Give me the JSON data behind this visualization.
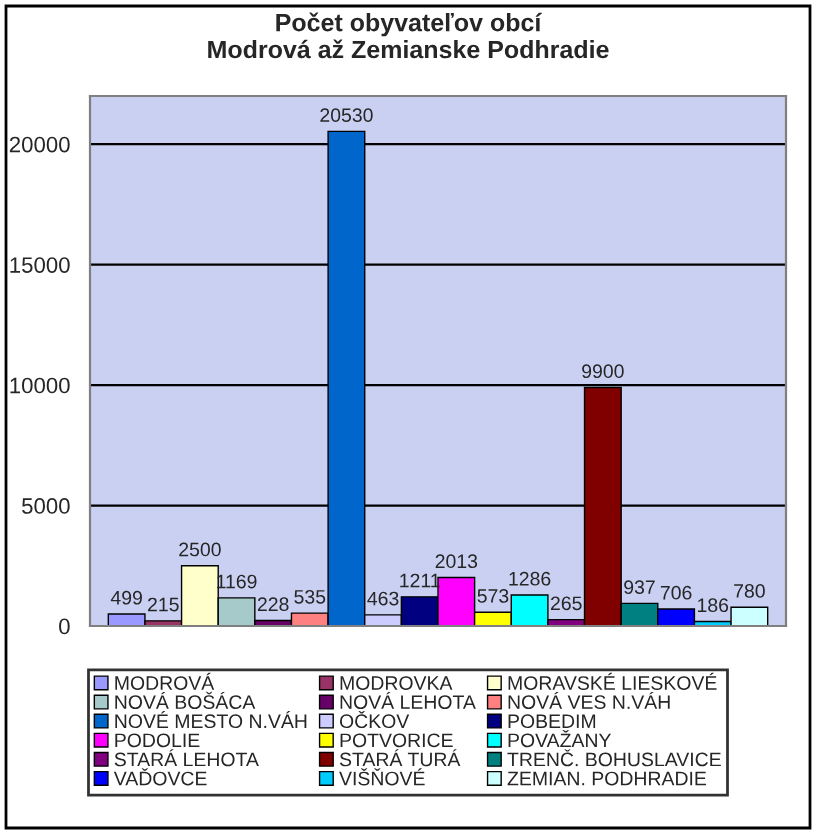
{
  "chart_data": {
    "type": "bar",
    "title": "Počet obyvateľov obcí\nModrová až Zemianske Podhradie",
    "categories": [
      null
    ],
    "series": [
      {
        "name": "MODROVÁ",
        "color": "#9999ff",
        "values": [
          499
        ]
      },
      {
        "name": "MODROVKA",
        "color": "#993366",
        "values": [
          215
        ]
      },
      {
        "name": "MORAVSKÉ LIESKOVÉ",
        "color": "#ffffcc",
        "values": [
          2500
        ]
      },
      {
        "name": "NOVÁ BOŠÁCA",
        "color": "#a6caca",
        "values": [
          1169
        ]
      },
      {
        "name": "NOVÁ LEHOTA",
        "color": "#660066",
        "values": [
          228
        ]
      },
      {
        "name": "NOVÁ VES N.VÁH",
        "color": "#ff8080",
        "values": [
          535
        ]
      },
      {
        "name": "NOVÉ MESTO N.VÁH",
        "color": "#0066cc",
        "values": [
          20530
        ]
      },
      {
        "name": "OČKOV",
        "color": "#ccccff",
        "values": [
          463
        ]
      },
      {
        "name": "POBEDIM",
        "color": "#000080",
        "values": [
          1211
        ]
      },
      {
        "name": "PODOLIE",
        "color": "#ff00ff",
        "values": [
          2013
        ]
      },
      {
        "name": "POTVORICE",
        "color": "#ffff00",
        "values": [
          573
        ]
      },
      {
        "name": "POVAŽANY",
        "color": "#00ffff",
        "values": [
          1286
        ]
      },
      {
        "name": "STARÁ LEHOTA",
        "color": "#800080",
        "values": [
          265
        ]
      },
      {
        "name": "STARÁ TURÁ",
        "color": "#800000",
        "values": [
          9900
        ]
      },
      {
        "name": "TRENČ. BOHUSLAVICE",
        "color": "#008080",
        "values": [
          937
        ]
      },
      {
        "name": "VAĎOVCE",
        "color": "#0000ff",
        "values": [
          706
        ]
      },
      {
        "name": "VIŠŇOVÉ",
        "color": "#00ccff",
        "values": [
          186
        ]
      },
      {
        "name": "ZEMIAN. PODHRADIE",
        "color": "#ccffff",
        "values": [
          780
        ]
      }
    ],
    "ylim": [
      0,
      22000
    ],
    "yticks": [
      0,
      5000,
      10000,
      15000,
      20000
    ],
    "grid": "y",
    "legend": "bottom",
    "data_labels": true
  }
}
